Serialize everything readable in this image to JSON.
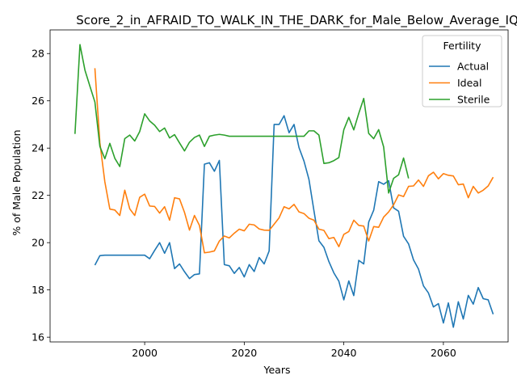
{
  "chart_data": {
    "type": "line",
    "title": "Score_2_in_AFRAID_TO_WALK_IN_THE_DARK_for_Male_Below_Average_IQ",
    "xlabel": "Years",
    "ylabel": "% of Male Population",
    "xlim": [
      1981,
      2073
    ],
    "ylim": [
      15.8,
      29.0
    ],
    "xticks": [
      2000,
      2020,
      2040,
      2060
    ],
    "yticks": [
      16,
      18,
      20,
      22,
      24,
      26,
      28
    ],
    "legend": {
      "title": "Fertility",
      "position": "top-right"
    },
    "grid": false,
    "series": [
      {
        "name": "Actual",
        "color": "#1f77b4",
        "x": [
          1990,
          1991,
          1992,
          1993,
          1994,
          1995,
          1996,
          1997,
          1998,
          1999,
          2000,
          2001,
          2002,
          2003,
          2004,
          2005,
          2006,
          2007,
          2008,
          2009,
          2010,
          2011,
          2012,
          2013,
          2014,
          2015,
          2016,
          2017,
          2018,
          2019,
          2020,
          2021,
          2022,
          2023,
          2024,
          2025,
          2026,
          2027,
          2028,
          2029,
          2030,
          2031,
          2032,
          2033,
          2034,
          2035,
          2036,
          2037,
          2038,
          2039,
          2040,
          2041,
          2042,
          2043,
          2044,
          2045,
          2046,
          2047,
          2048,
          2049,
          2050,
          2051,
          2052,
          2053,
          2054,
          2055,
          2056,
          2057,
          2058,
          2059,
          2060,
          2061,
          2062,
          2063,
          2064,
          2065,
          2066,
          2067,
          2068,
          2069,
          2070
        ],
        "values": [
          19.05,
          19.45,
          19.47,
          19.47,
          19.47,
          19.47,
          19.47,
          19.47,
          19.47,
          19.47,
          19.47,
          19.32,
          19.67,
          20.0,
          19.55,
          20.0,
          18.9,
          19.1,
          18.77,
          18.48,
          18.65,
          18.68,
          23.32,
          23.38,
          23.02,
          23.48,
          19.07,
          19.02,
          18.7,
          18.95,
          18.55,
          19.07,
          18.78,
          19.37,
          19.1,
          19.65,
          25.0,
          25.0,
          25.37,
          24.65,
          25.0,
          24.02,
          23.45,
          22.67,
          21.35,
          20.08,
          19.8,
          19.2,
          18.72,
          18.37,
          17.58,
          18.38,
          17.76,
          19.25,
          19.1,
          20.87,
          21.37,
          22.58,
          22.47,
          22.62,
          21.47,
          21.33,
          20.27,
          19.95,
          19.27,
          18.88,
          18.17,
          17.87,
          17.28,
          17.42,
          16.6,
          17.45,
          16.42,
          17.5,
          16.77,
          17.77,
          17.4,
          18.1,
          17.63,
          17.58,
          16.97
        ]
      },
      {
        "name": "Ideal",
        "color": "#ff7f0e",
        "x": [
          1990,
          1991,
          1992,
          1993,
          1994,
          1995,
          1996,
          1997,
          1998,
          1999,
          2000,
          2001,
          2002,
          2003,
          2004,
          2005,
          2006,
          2007,
          2008,
          2009,
          2010,
          2011,
          2012,
          2013,
          2014,
          2015,
          2016,
          2017,
          2018,
          2019,
          2020,
          2021,
          2022,
          2023,
          2024,
          2025,
          2026,
          2027,
          2028,
          2029,
          2030,
          2031,
          2032,
          2033,
          2034,
          2035,
          2036,
          2037,
          2038,
          2039,
          2040,
          2041,
          2042,
          2043,
          2044,
          2045,
          2046,
          2047,
          2048,
          2049,
          2050,
          2051,
          2052,
          2053,
          2054,
          2055,
          2056,
          2057,
          2058,
          2059,
          2060,
          2061,
          2062,
          2063,
          2064,
          2065,
          2066,
          2067,
          2068,
          2069,
          2070
        ],
        "values": [
          27.38,
          24.23,
          22.57,
          21.42,
          21.38,
          21.15,
          22.22,
          21.43,
          21.15,
          21.92,
          22.05,
          21.55,
          21.53,
          21.25,
          21.52,
          20.95,
          21.9,
          21.85,
          21.28,
          20.53,
          21.15,
          20.73,
          19.57,
          19.6,
          19.65,
          20.07,
          20.28,
          20.2,
          20.4,
          20.57,
          20.5,
          20.78,
          20.75,
          20.58,
          20.53,
          20.52,
          20.78,
          21.05,
          21.52,
          21.43,
          21.62,
          21.3,
          21.23,
          21.03,
          20.95,
          20.57,
          20.52,
          20.17,
          20.22,
          19.83,
          20.35,
          20.47,
          20.95,
          20.73,
          20.7,
          20.07,
          20.68,
          20.65,
          21.08,
          21.3,
          21.6,
          22.02,
          21.95,
          22.38,
          22.4,
          22.65,
          22.38,
          22.83,
          22.98,
          22.7,
          22.92,
          22.85,
          22.82,
          22.45,
          22.48,
          21.9,
          22.38,
          22.1,
          22.22,
          22.4,
          22.77
        ]
      },
      {
        "name": "Sterile",
        "color": "#2ca02c",
        "x": [
          1986,
          1987,
          1988,
          1989,
          1990,
          1991,
          1992,
          1993,
          1994,
          1995,
          1996,
          1997,
          1998,
          1999,
          2000,
          2001,
          2002,
          2003,
          2004,
          2005,
          2006,
          2007,
          2008,
          2009,
          2010,
          2011,
          2012,
          2013,
          2014,
          2015,
          2016,
          2017,
          2018,
          2019,
          2020,
          2021,
          2022,
          2023,
          2024,
          2025,
          2026,
          2027,
          2028,
          2029,
          2030,
          2031,
          2032,
          2033,
          2034,
          2035,
          2036,
          2037,
          2038,
          2039,
          2040,
          2041,
          2042,
          2043,
          2044,
          2045,
          2046,
          2047,
          2048,
          2049,
          2050,
          2051,
          2052,
          2053
        ],
        "values": [
          24.6,
          28.38,
          27.3,
          26.62,
          25.95,
          24.07,
          23.55,
          24.2,
          23.57,
          23.22,
          24.4,
          24.55,
          24.3,
          24.7,
          25.45,
          25.15,
          24.97,
          24.7,
          24.85,
          24.43,
          24.57,
          24.22,
          23.88,
          24.25,
          24.45,
          24.55,
          24.07,
          24.5,
          24.55,
          24.58,
          24.55,
          24.5,
          24.5,
          24.5,
          24.5,
          24.5,
          24.5,
          24.5,
          24.5,
          24.5,
          24.5,
          24.5,
          24.5,
          24.5,
          24.5,
          24.5,
          24.5,
          24.73,
          24.73,
          24.55,
          23.35,
          23.38,
          23.47,
          23.6,
          24.78,
          25.3,
          24.77,
          25.47,
          26.1,
          24.62,
          24.4,
          24.78,
          24.05,
          22.1,
          22.72,
          22.87,
          23.58,
          22.72
        ]
      }
    ]
  }
}
